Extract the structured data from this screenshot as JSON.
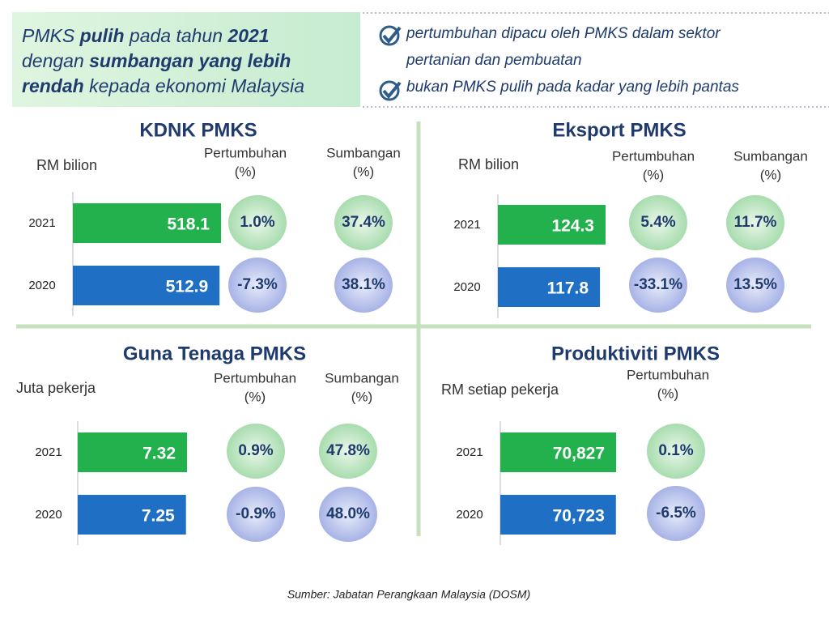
{
  "headline": [
    [
      {
        "text": "PMKS ",
        "bold": false
      },
      {
        "text": "pulih",
        "bold": true
      },
      {
        "text": " pada tahun ",
        "bold": false
      },
      {
        "text": "2021",
        "bold": true
      }
    ],
    [
      {
        "text": "dengan ",
        "bold": false
      },
      {
        "text": "sumbangan yang lebih",
        "bold": true
      }
    ],
    [
      {
        "text": "rendah",
        "bold": true
      },
      {
        "text": " kepada ekonomi Malaysia",
        "bold": false
      }
    ]
  ],
  "bullets": [
    [
      "pertumbuhan dipacu oleh PMKS dalam sektor",
      "pertanian dan pembuatan"
    ],
    [
      "bukan PMKS pulih pada kadar yang lebih pantas"
    ]
  ],
  "source": "Sumber: Jabatan Perangkaan Malaysia (DOSM)",
  "chart_data": [
    {
      "type": "bar",
      "title": "KDNK PMKS",
      "unit": "RM bilion",
      "categories": [
        "2021",
        "2020"
      ],
      "values": [
        518.1,
        512.9
      ],
      "colors": [
        "#22b14c",
        "#1f6fc4"
      ],
      "growth": {
        "title": [
          "Pertumbuhan",
          "(%)"
        ],
        "values": [
          1.0,
          -7.3
        ],
        "value_labels": [
          "1.0%",
          "-7.3%"
        ]
      },
      "share": {
        "title": [
          "Sumbangan",
          "(%)"
        ],
        "values": [
          37.4,
          38.1
        ],
        "value_labels": [
          "37.4%",
          "38.1%"
        ]
      }
    },
    {
      "type": "bar",
      "title": "Eksport PMKS",
      "unit": "RM bilion",
      "categories": [
        "2021",
        "2020"
      ],
      "values": [
        124.3,
        117.8
      ],
      "colors": [
        "#22b14c",
        "#1f6fc4"
      ],
      "growth": {
        "title": [
          "Pertumbuhan",
          "(%)"
        ],
        "values": [
          5.4,
          -33.1
        ],
        "value_labels": [
          "5.4%",
          "-33.1%"
        ]
      },
      "share": {
        "title": [
          "Sumbangan",
          "(%)"
        ],
        "values": [
          11.7,
          13.5
        ],
        "value_labels": [
          "11.7%",
          "13.5%"
        ]
      }
    },
    {
      "type": "bar",
      "title": "Guna Tenaga PMKS",
      "unit": "Juta pekerja",
      "categories": [
        "2021",
        "2020"
      ],
      "values": [
        7.32,
        7.25
      ],
      "colors": [
        "#22b14c",
        "#1f6fc4"
      ],
      "growth": {
        "title": [
          "Pertumbuhan",
          "(%)"
        ],
        "values": [
          0.9,
          -0.9
        ],
        "value_labels": [
          "0.9%",
          "-0.9%"
        ]
      },
      "share": {
        "title": [
          "Sumbangan",
          "(%)"
        ],
        "values": [
          47.8,
          48.0
        ],
        "value_labels": [
          "47.8%",
          "48.0%"
        ]
      }
    },
    {
      "type": "bar",
      "title": "Produktiviti PMKS",
      "unit": "RM setiap pekerja",
      "categories": [
        "2021",
        "2020"
      ],
      "values": [
        70827,
        70723
      ],
      "value_labels": [
        "70,827",
        "70,723"
      ],
      "colors": [
        "#22b14c",
        "#1f6fc4"
      ],
      "growth": {
        "title": [
          "Pertumbuhan",
          "(%)"
        ],
        "values": [
          0.1,
          -6.5
        ],
        "value_labels": [
          "0.1%",
          "-6.5%"
        ]
      }
    }
  ]
}
